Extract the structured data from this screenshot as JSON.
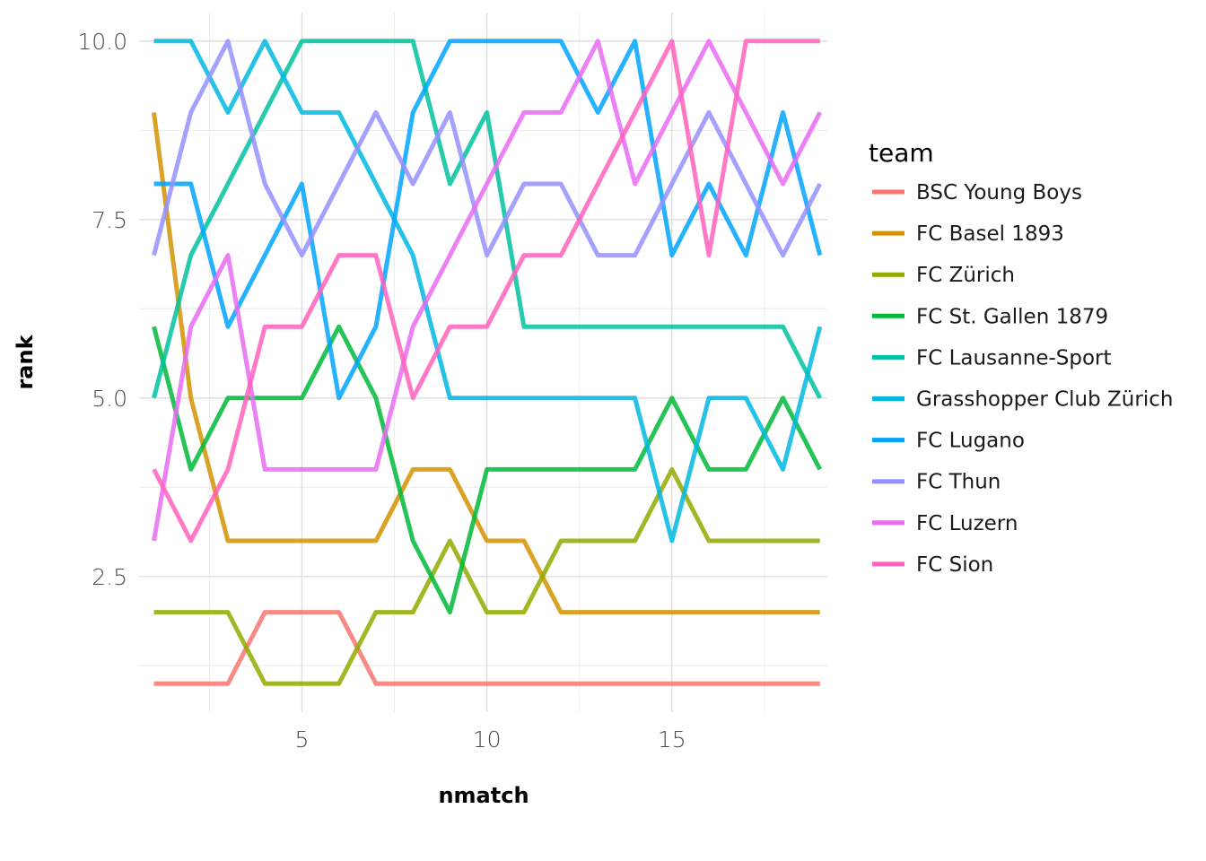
{
  "chart_data": {
    "type": "line",
    "xlabel": "nmatch",
    "ylabel": "rank",
    "xlim": [
      0.6,
      19.2
    ],
    "ylim": [
      0.6,
      10.4
    ],
    "x_ticks": [
      5,
      10,
      15
    ],
    "x_tick_labels": [
      "5",
      "10",
      "15"
    ],
    "x_minor": [
      2.5,
      7.5,
      12.5,
      17.5
    ],
    "y_ticks": [
      2.5,
      5.0,
      7.5,
      10.0
    ],
    "y_tick_labels": [
      "2.5",
      "5.0",
      "7.5",
      "10.0"
    ],
    "y_minor": [
      1.25,
      3.75,
      6.25,
      8.75
    ],
    "grid": true,
    "legend_title": "team",
    "legend_position": "right",
    "x": [
      1,
      2,
      3,
      4,
      5,
      6,
      7,
      8,
      9,
      10,
      11,
      12,
      13,
      14,
      15,
      16,
      17,
      18,
      19
    ],
    "series": [
      {
        "name": "BSC Young Boys",
        "color": "#F8766D",
        "values": [
          1,
          1,
          1,
          2,
          2,
          2,
          1,
          1,
          1,
          1,
          1,
          1,
          1,
          1,
          1,
          1,
          1,
          1,
          1
        ]
      },
      {
        "name": "FC Basel 1893",
        "color": "#D39200",
        "values": [
          9,
          5,
          3,
          3,
          3,
          3,
          3,
          4,
          4,
          3,
          3,
          2,
          2,
          2,
          2,
          2,
          2,
          2,
          2
        ]
      },
      {
        "name": "FC Zürich",
        "color": "#93AA00",
        "values": [
          2,
          2,
          2,
          1,
          1,
          1,
          2,
          2,
          3,
          2,
          2,
          3,
          3,
          3,
          4,
          3,
          3,
          3,
          3
        ]
      },
      {
        "name": "FC St. Gallen 1879",
        "color": "#00BA38",
        "values": [
          6,
          4,
          5,
          5,
          5,
          6,
          5,
          3,
          2,
          4,
          4,
          4,
          4,
          4,
          5,
          4,
          4,
          5,
          4
        ]
      },
      {
        "name": "FC Lausanne-Sport",
        "color": "#00C19F",
        "values": [
          5,
          7,
          8,
          9,
          10,
          10,
          10,
          10,
          8,
          9,
          6,
          6,
          6,
          6,
          6,
          6,
          6,
          6,
          5
        ]
      },
      {
        "name": "Grasshopper Club Zürich",
        "color": "#00B9E3",
        "values": [
          10,
          10,
          9,
          10,
          9,
          9,
          8,
          7,
          5,
          5,
          5,
          5,
          5,
          5,
          3,
          5,
          5,
          4,
          6
        ]
      },
      {
        "name": "FC Lugano",
        "color": "#00A5FF",
        "values": [
          8,
          8,
          6,
          7,
          8,
          5,
          6,
          9,
          10,
          10,
          10,
          10,
          9,
          10,
          7,
          8,
          7,
          9,
          7
        ]
      },
      {
        "name": "FC Thun",
        "color": "#9590FF",
        "values": [
          7,
          9,
          10,
          8,
          7,
          8,
          9,
          8,
          9,
          7,
          8,
          8,
          7,
          7,
          8,
          9,
          8,
          7,
          8
        ]
      },
      {
        "name": "FC Luzern",
        "color": "#E76BF3",
        "values": [
          3,
          6,
          7,
          4,
          4,
          4,
          4,
          6,
          7,
          8,
          9,
          9,
          10,
          8,
          9,
          10,
          9,
          8,
          9
        ]
      },
      {
        "name": "FC Sion",
        "color": "#FF62BC",
        "values": [
          4,
          3,
          4,
          6,
          6,
          7,
          7,
          5,
          6,
          6,
          7,
          7,
          8,
          9,
          10,
          7,
          10,
          10,
          10
        ]
      }
    ]
  }
}
